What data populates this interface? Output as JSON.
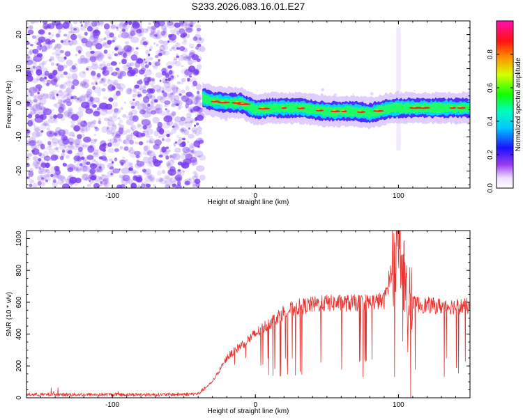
{
  "title": "S233.2026.083.16.01.E27",
  "colors": {
    "snr_line": "#e8322e",
    "noise": "#7a3df0",
    "axis": "#000000"
  },
  "chart_data": [
    {
      "type": "heatmap",
      "title": "S233.2026.083.16.01.E27",
      "xlabel": "Height of straight line (km)",
      "ylabel": "Frequency (Hz)",
      "xlim": [
        -160,
        150
      ],
      "ylim": [
        -25,
        24
      ],
      "xticks": [
        "-100",
        "0",
        "100"
      ],
      "yticks": [
        "20",
        "10",
        "0",
        "-10",
        "-20"
      ],
      "xtick_values": [
        -100,
        0,
        100
      ],
      "ytick_values": [
        20,
        10,
        0,
        -10,
        -20
      ],
      "colorbar": {
        "label": "Normalized spectral amplitude",
        "ticks": [
          "0.0",
          "0.2",
          "0.4",
          "0.6",
          "0.8"
        ],
        "tick_values": [
          0.0,
          0.2,
          0.4,
          0.6,
          0.8
        ],
        "range": [
          0,
          1
        ]
      },
      "noise_region": [
        -160,
        -37
      ],
      "signal_ridge": {
        "x": [
          -37,
          -30,
          -20,
          -10,
          0,
          10,
          20,
          30,
          40,
          50,
          60,
          70,
          80,
          90,
          100,
          110,
          120,
          130,
          140,
          150
        ],
        "freq": [
          1.5,
          0.5,
          0,
          0,
          -2,
          -1.5,
          -1.5,
          -1.5,
          -2,
          -2.5,
          -2.5,
          -2.5,
          -3,
          -2,
          -1.5,
          -1.5,
          -1.5,
          -1.5,
          -1.5,
          -1.5
        ]
      }
    },
    {
      "type": "line",
      "xlabel": "Height of straight line (km)",
      "ylabel": "SNR (10 * v/v)",
      "xlim": [
        -160,
        150
      ],
      "ylim": [
        0,
        1050
      ],
      "xticks": [
        "-100",
        "0",
        "100"
      ],
      "yticks": [
        "0",
        "200",
        "400",
        "600",
        "800",
        "1000"
      ],
      "xtick_values": [
        -100,
        0,
        100
      ],
      "ytick_values": [
        0,
        200,
        400,
        600,
        800,
        1000
      ],
      "series": [
        {
          "name": "SNR",
          "x": [
            -160,
            -140,
            -120,
            -100,
            -80,
            -60,
            -40,
            -30,
            -20,
            -10,
            0,
            10,
            20,
            30,
            40,
            50,
            60,
            70,
            80,
            90,
            95,
            100,
            105,
            110,
            120,
            130,
            140,
            150
          ],
          "y": [
            20,
            20,
            20,
            20,
            20,
            20,
            25,
            100,
            250,
            330,
            400,
            470,
            540,
            570,
            585,
            595,
            595,
            595,
            600,
            610,
            800,
            1040,
            700,
            590,
            580,
            575,
            575,
            575
          ]
        }
      ]
    }
  ]
}
